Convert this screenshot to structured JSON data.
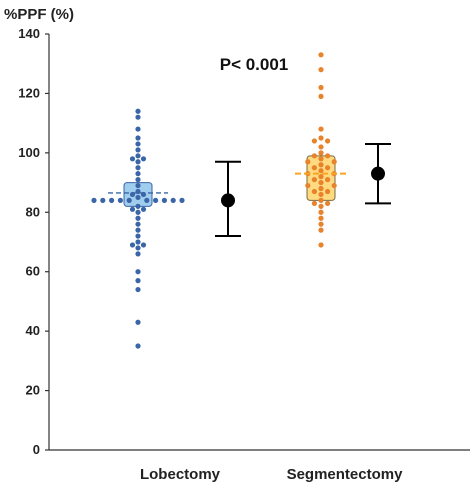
{
  "chart_data": {
    "type": "scatter",
    "ylabel": "%PPF  (%)",
    "ylim": [
      0,
      140
    ],
    "yticks": [
      0,
      20,
      40,
      60,
      80,
      100,
      120,
      140
    ],
    "grid": false,
    "categories": [
      "Lobectomy",
      "Segmentectomy"
    ],
    "annotation": "P< 0.001",
    "colors": {
      "lobectomy_points": "#3a66a8",
      "lobectomy_box_fill": "#8fc3ea",
      "lobectomy_box_stroke": "#3a66a8",
      "segmentectomy_points": "#e8822b",
      "segmentectomy_box_fill": "#ffd36b",
      "segmentectomy_box_stroke": "#7a6a40",
      "mean_sd": "#000000"
    },
    "groups": [
      {
        "category": "Lobectomy",
        "points": [
          {
            "x": 0.0,
            "y": 114
          },
          {
            "x": 0.0,
            "y": 112
          },
          {
            "x": 0.0,
            "y": 108
          },
          {
            "x": 0.0,
            "y": 105
          },
          {
            "x": 0.0,
            "y": 103
          },
          {
            "x": 0.0,
            "y": 101
          },
          {
            "x": 0.0,
            "y": 99
          },
          {
            "x": 0.0,
            "y": 97
          },
          {
            "x": 0.0,
            "y": 95
          },
          {
            "x": 0.0,
            "y": 93
          },
          {
            "x": 0.0,
            "y": 91
          },
          {
            "x": 0.0,
            "y": 89
          },
          {
            "x": 0.0,
            "y": 87
          },
          {
            "x": 0.0,
            "y": 85
          },
          {
            "x": 0.0,
            "y": 82
          },
          {
            "x": 0.0,
            "y": 80
          },
          {
            "x": 0.0,
            "y": 78
          },
          {
            "x": 0.0,
            "y": 76
          },
          {
            "x": 0.0,
            "y": 74
          },
          {
            "x": 0.0,
            "y": 72
          },
          {
            "x": 0.0,
            "y": 70
          },
          {
            "x": 0.0,
            "y": 68
          },
          {
            "x": 0.0,
            "y": 66
          },
          {
            "x": 0.0,
            "y": 60
          },
          {
            "x": 0.0,
            "y": 57
          },
          {
            "x": 0.0,
            "y": 54
          },
          {
            "x": 0.0,
            "y": 43
          },
          {
            "x": 0.0,
            "y": 35
          },
          {
            "x": -0.05,
            "y": 98
          },
          {
            "x": 0.05,
            "y": 98
          },
          {
            "x": -0.05,
            "y": 86
          },
          {
            "x": 0.05,
            "y": 86
          },
          {
            "x": -0.05,
            "y": 69
          },
          {
            "x": 0.05,
            "y": 69
          },
          {
            "x": -0.05,
            "y": 81
          },
          {
            "x": 0.05,
            "y": 81
          },
          {
            "x": -0.4,
            "y": 84
          },
          {
            "x": -0.32,
            "y": 84
          },
          {
            "x": -0.24,
            "y": 84
          },
          {
            "x": -0.16,
            "y": 84
          },
          {
            "x": -0.08,
            "y": 84
          },
          {
            "x": 0.08,
            "y": 84
          },
          {
            "x": 0.16,
            "y": 84
          },
          {
            "x": 0.24,
            "y": 84
          },
          {
            "x": 0.32,
            "y": 84
          },
          {
            "x": 0.4,
            "y": 84
          }
        ],
        "box": {
          "q1": 82,
          "q3": 90,
          "median": 86.5
        },
        "mean": 84,
        "sd_lower": 72,
        "sd_upper": 97
      },
      {
        "category": "Segmentectomy",
        "points": [
          {
            "x": 0.0,
            "y": 133
          },
          {
            "x": 0.0,
            "y": 128
          },
          {
            "x": 0.0,
            "y": 122
          },
          {
            "x": 0.0,
            "y": 119
          },
          {
            "x": 0.0,
            "y": 108
          },
          {
            "x": 0.0,
            "y": 105
          },
          {
            "x": 0.0,
            "y": 102
          },
          {
            "x": 0.0,
            "y": 100
          },
          {
            "x": 0.0,
            "y": 98
          },
          {
            "x": 0.0,
            "y": 96
          },
          {
            "x": 0.0,
            "y": 94
          },
          {
            "x": 0.0,
            "y": 92
          },
          {
            "x": 0.0,
            "y": 90
          },
          {
            "x": 0.0,
            "y": 88
          },
          {
            "x": 0.0,
            "y": 86
          },
          {
            "x": 0.0,
            "y": 84
          },
          {
            "x": 0.0,
            "y": 82
          },
          {
            "x": 0.0,
            "y": 80
          },
          {
            "x": 0.0,
            "y": 78
          },
          {
            "x": 0.0,
            "y": 76
          },
          {
            "x": 0.0,
            "y": 74
          },
          {
            "x": 0.0,
            "y": 69
          },
          {
            "x": -0.06,
            "y": 104
          },
          {
            "x": 0.06,
            "y": 104
          },
          {
            "x": -0.06,
            "y": 99
          },
          {
            "x": 0.06,
            "y": 99
          },
          {
            "x": -0.06,
            "y": 95
          },
          {
            "x": 0.06,
            "y": 95
          },
          {
            "x": -0.06,
            "y": 91
          },
          {
            "x": 0.06,
            "y": 91
          },
          {
            "x": -0.06,
            "y": 87
          },
          {
            "x": 0.06,
            "y": 87
          },
          {
            "x": -0.06,
            "y": 83
          },
          {
            "x": 0.06,
            "y": 83
          },
          {
            "x": -0.12,
            "y": 97
          },
          {
            "x": 0.12,
            "y": 97
          },
          {
            "x": -0.12,
            "y": 93
          },
          {
            "x": 0.12,
            "y": 93
          },
          {
            "x": -0.12,
            "y": 89
          },
          {
            "x": 0.12,
            "y": 89
          }
        ],
        "box": {
          "q1": 84,
          "q3": 99,
          "median": 93
        },
        "mean": 93,
        "sd_lower": 83,
        "sd_upper": 103
      }
    ]
  }
}
